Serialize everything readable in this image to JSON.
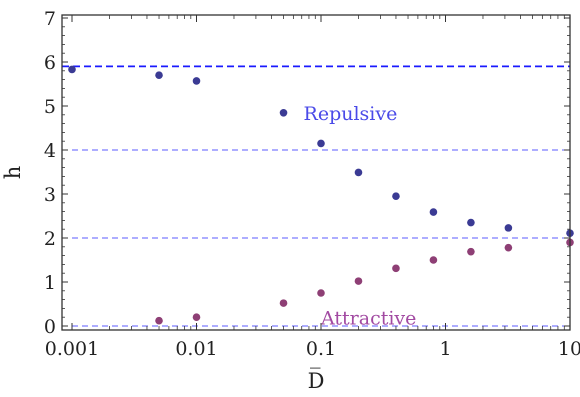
{
  "chart_data": {
    "type": "scatter",
    "title": "",
    "xlabel": "D̅",
    "ylabel": "h̅",
    "xscale": "log",
    "xlim": [
      0.001,
      10
    ],
    "ylim": [
      0,
      7
    ],
    "x_ticks": [
      {
        "value": 0.001,
        "label": "0.001"
      },
      {
        "value": 0.01,
        "label": "0.01"
      },
      {
        "value": 0.1,
        "label": "0.1"
      },
      {
        "value": 1,
        "label": "1"
      },
      {
        "value": 10,
        "label": "10"
      }
    ],
    "y_ticks": [
      {
        "value": 0,
        "label": "0"
      },
      {
        "value": 1,
        "label": "1"
      },
      {
        "value": 2,
        "label": "2"
      },
      {
        "value": 3,
        "label": "3"
      },
      {
        "value": 4,
        "label": "4"
      },
      {
        "value": 5,
        "label": "5"
      },
      {
        "value": 6,
        "label": "6"
      },
      {
        "value": 7,
        "label": "7"
      }
    ],
    "reference_lines": [
      {
        "y": 5.9,
        "color": "#1a1aff",
        "style": "dashed",
        "emphasis": "thick"
      },
      {
        "y": 4.0,
        "color": "#5b5bff",
        "style": "dashed",
        "emphasis": "thin"
      },
      {
        "y": 2.0,
        "color": "#5b5bff",
        "style": "dashed",
        "emphasis": "thin"
      },
      {
        "y": 0.0,
        "color": "#5b5bff",
        "style": "dashed",
        "emphasis": "thin"
      }
    ],
    "series": [
      {
        "name": "Repulsive",
        "color": "#3b3b94",
        "label_color": "#4a4ae8",
        "points": [
          {
            "x": 0.001,
            "y": 5.83
          },
          {
            "x": 0.005,
            "y": 5.7
          },
          {
            "x": 0.01,
            "y": 5.57
          },
          {
            "x": 0.1,
            "y": 4.15
          },
          {
            "x": 0.2,
            "y": 3.49
          },
          {
            "x": 0.4,
            "y": 2.95
          },
          {
            "x": 0.8,
            "y": 2.59
          },
          {
            "x": 1.6,
            "y": 2.35
          },
          {
            "x": 3.2,
            "y": 2.23
          },
          {
            "x": 10,
            "y": 2.11
          }
        ]
      },
      {
        "name": "Attractive",
        "color": "#8e3f75",
        "label_color": "#a24aa2",
        "points": [
          {
            "x": 0.005,
            "y": 0.12
          },
          {
            "x": 0.01,
            "y": 0.2
          },
          {
            "x": 0.05,
            "y": 0.52
          },
          {
            "x": 0.1,
            "y": 0.75
          },
          {
            "x": 0.2,
            "y": 1.02
          },
          {
            "x": 0.4,
            "y": 1.31
          },
          {
            "x": 0.8,
            "y": 1.5
          },
          {
            "x": 1.6,
            "y": 1.69
          },
          {
            "x": 3.2,
            "y": 1.78
          },
          {
            "x": 10,
            "y": 1.9
          }
        ]
      }
    ],
    "legend": [
      {
        "label": "Repulsive",
        "series": 0,
        "marker": true,
        "at": {
          "x": 0.05,
          "y": 4.8
        }
      },
      {
        "label": "Attractive",
        "series": 1,
        "marker": false,
        "at": {
          "x": 0.1,
          "y": 0.15
        }
      }
    ]
  }
}
